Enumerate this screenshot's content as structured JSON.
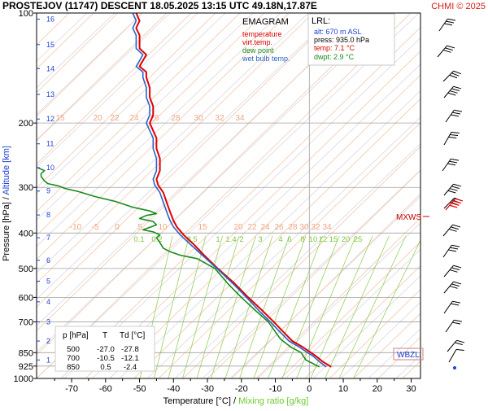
{
  "header": {
    "title": "PROSTEJOV (11747)   DESCENT   18.05.2025 13:15 UTC  49.18N,17.87E",
    "copyright": "CHMI © 2025",
    "copyright_color": "#d81b1b"
  },
  "legend": {
    "title": "EMAGRAM",
    "items": [
      {
        "label": "temperature",
        "color": "#e00000"
      },
      {
        "label": "virt.temp.",
        "color": "#e00000"
      },
      {
        "label": "dew point",
        "color": "#1a8a1a"
      },
      {
        "label": "wet bulb temp.",
        "color": "#2a62c8"
      }
    ]
  },
  "lrl": {
    "title": "LRL:",
    "alt": "alt: 670 m ASL",
    "press": "press: 935.0 hPa",
    "temp": "temp: 7.1 °C",
    "dwpt": "dwpt: 2.9 °C",
    "alt_color": "#1d3fd6",
    "temp_color": "#e00000",
    "dwpt_color": "#1a8a1a"
  },
  "summary_table": {
    "headers": [
      "p [hPa]",
      "T",
      "Td [°C]"
    ],
    "rows": [
      [
        "500",
        "-27.0",
        "-27.8"
      ],
      [
        "700",
        "-10.5",
        "-12.1"
      ],
      [
        "850",
        "0.5",
        "-2.4"
      ]
    ]
  },
  "markers": {
    "mxws": "MXWS",
    "wbzl": "WBZL"
  },
  "chart_data": {
    "type": "line",
    "title": "EMAGRAM",
    "xlabel": "Temperature [°C]",
    "xlabel_sep": " /  ",
    "xlabel2": "Mixing ratio [g/kg]",
    "xlabel2_color": "#6ecb2f",
    "ylabel": "Pressure [hPa]",
    "ylabel_sep": "  /  ",
    "ylabel2": "Altitude [km]",
    "ylabel2_color": "#1d3fd6",
    "xlim": [
      -80,
      40
    ],
    "ylim": [
      1000,
      100
    ],
    "y_scale": "log",
    "x_ticks": [
      -70,
      -60,
      -50,
      -40,
      -30,
      -20,
      -10,
      0,
      10,
      20,
      30
    ],
    "y_ticks": [
      100,
      200,
      300,
      400,
      500,
      600,
      700,
      850,
      925,
      1000
    ],
    "altitude_ticks": [
      {
        "label": "1",
        "p": 890
      },
      {
        "label": "2",
        "p": 790
      },
      {
        "label": "3",
        "p": 700
      },
      {
        "label": "4",
        "p": 617
      },
      {
        "label": "5",
        "p": 542
      },
      {
        "label": "6",
        "p": 475
      },
      {
        "label": "7",
        "p": 412
      },
      {
        "label": "8",
        "p": 357
      },
      {
        "label": "9",
        "p": 307
      },
      {
        "label": "10",
        "p": 265
      },
      {
        "label": "11",
        "p": 228
      },
      {
        "label": "12",
        "p": 195
      },
      {
        "label": "13",
        "p": 167
      },
      {
        "label": "14",
        "p": 142
      },
      {
        "label": "15",
        "p": 122
      },
      {
        "label": "16",
        "p": 104
      }
    ],
    "mixing_ratio_labels_upper": [
      "15",
      "20",
      "22",
      "24",
      "26",
      "28",
      "30",
      "32",
      "34"
    ],
    "mixing_ratio_labels_mid": [
      "-10",
      "-5",
      "0",
      "5",
      "10",
      "15",
      "20",
      "22",
      "24",
      "26",
      "28",
      "30",
      "32",
      "34"
    ],
    "mixing_ratio_labels_lower": [
      "0.1",
      "0.2",
      "0.5",
      "1",
      "1.4",
      "2",
      "3",
      "4",
      "6",
      "8",
      "10",
      "12",
      "15",
      "20",
      "25"
    ],
    "mxws_pressure": 355,
    "wbzl_pressure": 862,
    "series": [
      {
        "name": "temperature",
        "color": "#e00000",
        "points": [
          [
            6.5,
            930
          ],
          [
            4,
            900
          ],
          [
            2,
            870
          ],
          [
            0.5,
            850
          ],
          [
            -2,
            820
          ],
          [
            -5,
            790
          ],
          [
            -8,
            740
          ],
          [
            -10.5,
            700
          ],
          [
            -14,
            650
          ],
          [
            -18,
            600
          ],
          [
            -22,
            550
          ],
          [
            -27,
            500
          ],
          [
            -31,
            460
          ],
          [
            -34,
            430
          ],
          [
            -37,
            405
          ],
          [
            -39,
            385
          ],
          [
            -40,
            370
          ],
          [
            -40.5,
            360
          ],
          [
            -41,
            350
          ],
          [
            -42,
            330
          ],
          [
            -43,
            310
          ],
          [
            -44.5,
            296
          ],
          [
            -45,
            285
          ],
          [
            -44,
            270
          ],
          [
            -44,
            250
          ],
          [
            -45,
            235
          ],
          [
            -45,
            220
          ],
          [
            -47,
            200
          ],
          [
            -46,
            190
          ],
          [
            -46,
            180
          ],
          [
            -47,
            170
          ],
          [
            -47,
            160
          ],
          [
            -48,
            150
          ],
          [
            -48,
            145
          ],
          [
            -50,
            140
          ],
          [
            -49,
            135
          ],
          [
            -48,
            130
          ],
          [
            -50,
            125
          ],
          [
            -50,
            120
          ],
          [
            -50,
            115
          ],
          [
            -51,
            110
          ],
          [
            -50,
            105
          ],
          [
            -51,
            100
          ]
        ]
      },
      {
        "name": "wet bulb temp.",
        "color": "#2a62c8",
        "points": [
          [
            5,
            930
          ],
          [
            3,
            900
          ],
          [
            1.2,
            870
          ],
          [
            -0.5,
            850
          ],
          [
            -3,
            820
          ],
          [
            -6,
            790
          ],
          [
            -9,
            740
          ],
          [
            -11.5,
            700
          ],
          [
            -15,
            650
          ],
          [
            -18.5,
            600
          ],
          [
            -22.5,
            550
          ],
          [
            -27.2,
            500
          ],
          [
            -31.5,
            460
          ],
          [
            -35,
            430
          ],
          [
            -38,
            405
          ],
          [
            -40,
            385
          ],
          [
            -41,
            370
          ],
          [
            -41.5,
            360
          ],
          [
            -42,
            350
          ],
          [
            -43,
            330
          ],
          [
            -44,
            310
          ],
          [
            -45.5,
            296
          ],
          [
            -46,
            285
          ],
          [
            -45,
            270
          ],
          [
            -45,
            250
          ],
          [
            -46,
            235
          ],
          [
            -46,
            220
          ],
          [
            -48,
            200
          ],
          [
            -47,
            190
          ],
          [
            -47,
            180
          ],
          [
            -48,
            170
          ],
          [
            -48,
            160
          ],
          [
            -49,
            150
          ],
          [
            -49,
            145
          ],
          [
            -51,
            140
          ],
          [
            -50,
            135
          ],
          [
            -49,
            130
          ],
          [
            -51,
            125
          ],
          [
            -51,
            120
          ],
          [
            -51,
            115
          ],
          [
            -52,
            110
          ],
          [
            -51,
            105
          ],
          [
            -52,
            100
          ]
        ]
      },
      {
        "name": "dew point",
        "color": "#1a8a1a",
        "points": [
          [
            3,
            930
          ],
          [
            1.5,
            915
          ],
          [
            -1,
            890
          ],
          [
            -2.4,
            850
          ],
          [
            -5.5,
            820
          ],
          [
            -8.5,
            780
          ],
          [
            -12.1,
            700
          ],
          [
            -16,
            650
          ],
          [
            -20,
            600
          ],
          [
            -24,
            550
          ],
          [
            -27.8,
            500
          ],
          [
            -33,
            470
          ],
          [
            -38,
            460
          ],
          [
            -41,
            450
          ],
          [
            -43,
            440
          ],
          [
            -44,
            425
          ],
          [
            -45,
            412
          ],
          [
            -44,
            405
          ],
          [
            -46,
            397
          ],
          [
            -49,
            392
          ],
          [
            -47,
            386
          ],
          [
            -45,
            380
          ],
          [
            -46,
            372
          ],
          [
            -50,
            365
          ],
          [
            -48,
            358
          ],
          [
            -45,
            354
          ],
          [
            -47,
            348
          ],
          [
            -52,
            340
          ],
          [
            -57,
            328
          ],
          [
            -63,
            318
          ],
          [
            -68,
            308
          ],
          [
            -72,
            302
          ],
          [
            -74,
            297
          ],
          [
            -77,
            293
          ],
          [
            -78,
            288
          ],
          [
            -79,
            280
          ],
          [
            -79,
            275
          ],
          [
            -78,
            270
          ],
          [
            -80,
            265
          ]
        ]
      }
    ]
  }
}
